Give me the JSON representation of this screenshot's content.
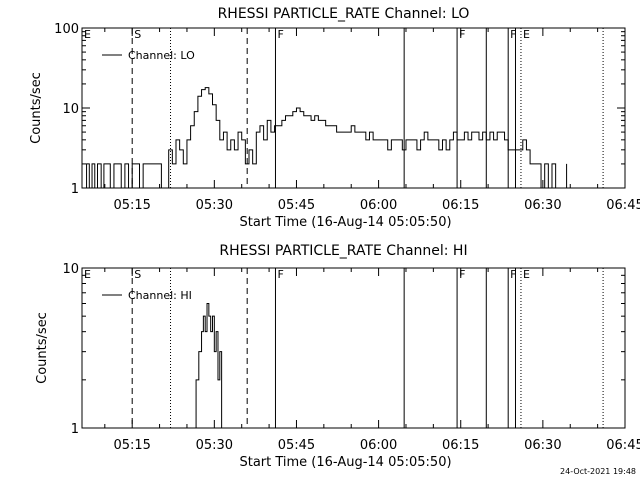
{
  "footer": {
    "date_stamp": "24-Oct-2021 19:48"
  },
  "chart_data": [
    {
      "type": "line",
      "title": "RHESSI PARTICLE_RATE Channel: LO",
      "xlabel": "Start Time (16-Aug-14 05:05:50)",
      "ylabel": "Counts/sec",
      "y_scale": "log",
      "ylim": [
        1,
        100
      ],
      "y_ticks": [
        {
          "value": 1,
          "label": "1"
        },
        {
          "value": 10,
          "label": "10"
        },
        {
          "value": 100,
          "label": "100"
        }
      ],
      "xlim": [
        "05:05:50",
        "06:45:00"
      ],
      "x_ticks": [
        "05:15",
        "05:30",
        "05:45",
        "06:00",
        "06:15",
        "06:30",
        "06:45"
      ],
      "grid": false,
      "legend": {
        "placement": "top-left",
        "entries": [
          "Channel: LO"
        ]
      },
      "series": [
        {
          "name": "Channel: LO",
          "x": [
            "05:05:50",
            "05:06:40",
            "05:07:10",
            "05:07:40",
            "05:08:10",
            "05:08:40",
            "05:09:20",
            "05:09:50",
            "05:10:30",
            "05:11:00",
            "05:11:40",
            "05:12:20",
            "05:13:00",
            "05:13:40",
            "05:14:20",
            "05:15:00",
            "05:15:40",
            "05:16:20",
            "05:17:00",
            "05:17:40",
            "05:18:20",
            "05:19:00",
            "05:19:40",
            "05:20:20",
            "05:21:00",
            "05:21:40",
            "05:22:20",
            "05:23:00",
            "05:23:40",
            "05:24:20",
            "05:25:00",
            "05:25:40",
            "05:26:20",
            "05:27:00",
            "05:27:40",
            "05:28:20",
            "05:29:00",
            "05:29:40",
            "05:30:20",
            "05:31:00",
            "05:31:40",
            "05:32:20",
            "05:33:00",
            "05:33:40",
            "05:34:20",
            "05:35:00",
            "05:35:40",
            "05:36:20",
            "05:37:00",
            "05:37:40",
            "05:38:20",
            "05:39:00",
            "05:39:40",
            "05:40:20",
            "05:41:00",
            "05:41:40",
            "05:42:20",
            "05:43:00",
            "05:43:40",
            "05:44:20",
            "05:45:00",
            "05:45:40",
            "05:46:20",
            "05:47:00",
            "05:47:40",
            "05:48:20",
            "05:49:00",
            "05:49:40",
            "05:50:20",
            "05:51:00",
            "05:51:40",
            "05:52:20",
            "05:53:00",
            "05:53:40",
            "05:54:20",
            "05:55:00",
            "05:55:40",
            "05:56:20",
            "05:57:00",
            "05:57:40",
            "05:58:20",
            "05:59:00",
            "05:59:40",
            "06:00:20",
            "06:01:00",
            "06:01:40",
            "06:02:20",
            "06:03:00",
            "06:03:40",
            "06:04:20",
            "06:05:00",
            "06:05:40",
            "06:06:20",
            "06:07:00",
            "06:07:40",
            "06:08:20",
            "06:09:00",
            "06:09:40",
            "06:10:20",
            "06:11:00",
            "06:11:40",
            "06:12:20",
            "06:13:00",
            "06:13:40",
            "06:14:20",
            "06:15:00",
            "06:15:40",
            "06:16:20",
            "06:17:00",
            "06:17:40",
            "06:18:20",
            "06:19:00",
            "06:19:40",
            "06:20:20",
            "06:21:00",
            "06:21:40",
            "06:22:20",
            "06:23:00",
            "06:23:40",
            "06:24:20",
            "06:25:00",
            "06:25:40",
            "06:26:20",
            "06:27:00",
            "06:27:40",
            "06:28:20",
            "06:29:00",
            "06:29:40",
            "06:30:20",
            "06:31:00",
            "06:31:40",
            "06:32:20",
            "06:33:00",
            "06:33:40",
            "06:34:20"
          ],
          "values": [
            1,
            2,
            1,
            2,
            1,
            2,
            1,
            2,
            2,
            1,
            2,
            2,
            1,
            2,
            1,
            2,
            2,
            1,
            2,
            2,
            2,
            2,
            2,
            1,
            1,
            3,
            2,
            4,
            3,
            2,
            4,
            6,
            9,
            14,
            17,
            18,
            15,
            11,
            7,
            4,
            5,
            3,
            4,
            3,
            5,
            4,
            2,
            3,
            2,
            5,
            6,
            4,
            7,
            5,
            6,
            6,
            7,
            8,
            8,
            9,
            10,
            9,
            8,
            8,
            7,
            8,
            7,
            7,
            6,
            6,
            6,
            5,
            5,
            5,
            5,
            6,
            5,
            5,
            5,
            4,
            5,
            4,
            4,
            4,
            4,
            3,
            4,
            4,
            4,
            3,
            4,
            4,
            4,
            3,
            4,
            5,
            4,
            4,
            4,
            3,
            4,
            3,
            4,
            5,
            4,
            4,
            5,
            4,
            5,
            5,
            4,
            5,
            4,
            5,
            4,
            5,
            5,
            4,
            3,
            3,
            3,
            3,
            4,
            3,
            2,
            2,
            2,
            1,
            2,
            1,
            2,
            1,
            1,
            1,
            2
          ]
        }
      ],
      "markers": [
        {
          "label": "E",
          "time": "05:05:50",
          "style": "solid"
        },
        {
          "label": "S",
          "time": "05:15:00",
          "style": "dashed"
        },
        {
          "label": "",
          "time": "05:22:00",
          "style": "dotted"
        },
        {
          "label": "",
          "time": "05:36:00",
          "style": "dashed"
        },
        {
          "label": "F",
          "time": "05:41:10",
          "style": "solid"
        },
        {
          "label": "",
          "time": "06:04:40",
          "style": "solid"
        },
        {
          "label": "F",
          "time": "06:14:20",
          "style": "solid"
        },
        {
          "label": "",
          "time": "06:19:40",
          "style": "solid"
        },
        {
          "label": "F",
          "time": "06:23:40",
          "style": "solid"
        },
        {
          "label": "",
          "time": "06:25:00",
          "style": "solid"
        },
        {
          "label": "E",
          "time": "06:26:00",
          "style": "dotted"
        },
        {
          "label": "",
          "time": "06:41:00",
          "style": "dotted"
        }
      ]
    },
    {
      "type": "line",
      "title": "RHESSI PARTICLE_RATE Channel: HI",
      "xlabel": "Start Time (16-Aug-14 05:05:50)",
      "ylabel": "Counts/sec",
      "y_scale": "log",
      "ylim": [
        1,
        10
      ],
      "y_ticks": [
        {
          "value": 1,
          "label": "1"
        },
        {
          "value": 10,
          "label": "10"
        }
      ],
      "xlim": [
        "05:05:50",
        "06:45:00"
      ],
      "x_ticks": [
        "05:15",
        "05:30",
        "05:45",
        "06:00",
        "06:15",
        "06:30",
        "06:45"
      ],
      "grid": false,
      "legend": {
        "placement": "top-left",
        "entries": [
          "Channel: HI"
        ]
      },
      "series": [
        {
          "name": "Channel: HI",
          "x": [
            "05:26:00",
            "05:26:40",
            "05:27:10",
            "05:27:40",
            "05:28:00",
            "05:28:20",
            "05:28:40",
            "05:29:00",
            "05:29:20",
            "05:29:40",
            "05:30:00",
            "05:30:20",
            "05:30:40",
            "05:31:00",
            "05:31:20",
            "05:31:40"
          ],
          "values": [
            1,
            2,
            3,
            4,
            5,
            4,
            6,
            5,
            4,
            5,
            3,
            4,
            2,
            3,
            1,
            1
          ]
        }
      ],
      "markers": [
        {
          "label": "E",
          "time": "05:05:50",
          "style": "solid"
        },
        {
          "label": "S",
          "time": "05:15:00",
          "style": "dashed"
        },
        {
          "label": "",
          "time": "05:22:00",
          "style": "dotted"
        },
        {
          "label": "",
          "time": "05:36:00",
          "style": "dashed"
        },
        {
          "label": "F",
          "time": "05:41:10",
          "style": "solid"
        },
        {
          "label": "",
          "time": "06:04:40",
          "style": "solid"
        },
        {
          "label": "F",
          "time": "06:14:20",
          "style": "solid"
        },
        {
          "label": "",
          "time": "06:19:40",
          "style": "solid"
        },
        {
          "label": "F",
          "time": "06:23:40",
          "style": "solid"
        },
        {
          "label": "",
          "time": "06:25:00",
          "style": "solid"
        },
        {
          "label": "E",
          "time": "06:26:00",
          "style": "dotted"
        },
        {
          "label": "",
          "time": "06:41:00",
          "style": "dotted"
        }
      ]
    }
  ]
}
